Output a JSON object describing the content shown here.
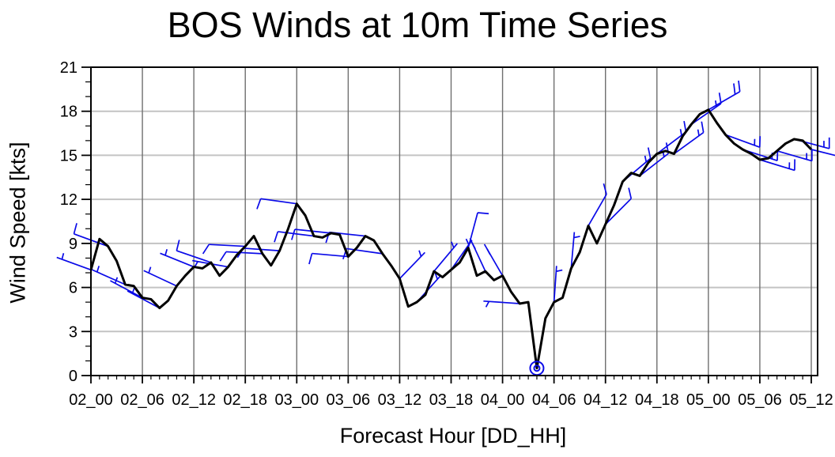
{
  "title": "BOS Winds at 10m Time Series",
  "axes": {
    "y": {
      "label": "Wind Speed [kts]",
      "tick_labels": [
        "0",
        "3",
        "6",
        "9",
        "12",
        "15",
        "18",
        "21"
      ],
      "range": [
        0,
        21
      ],
      "major_step": 3,
      "minor_step": 1
    },
    "x": {
      "label": "Forecast Hour [DD_HH]",
      "tick_labels": [
        "02_00",
        "02_06",
        "02_12",
        "02_18",
        "03_00",
        "03_06",
        "03_12",
        "03_18",
        "04_00",
        "04_06",
        "04_12",
        "04_18",
        "05_00",
        "05_06",
        "05_12"
      ],
      "range_hours": [
        0,
        84
      ],
      "major_step_hours": 6,
      "minor_step_hours": 1
    }
  },
  "colors": {
    "series_line": "#000000",
    "wind_barb": "#0a0ae8",
    "grid_vertical": "#6f6f6f",
    "grid_horizontal": "#c3c3c3",
    "frame": "#000000",
    "text": "#000000"
  },
  "chart_data": {
    "type": "line",
    "title": "BOS Winds at 10m Time Series",
    "xlabel": "Forecast Hour [DD_HH]",
    "ylabel": "Wind Speed [kts]",
    "x_start_label": "02_00",
    "x_end_label": "05_12",
    "x_step_hours": 1,
    "xlim_hours": [
      0,
      84
    ],
    "ylim": [
      0,
      21
    ],
    "grid": true,
    "series": [
      {
        "name": "wind_speed_kts",
        "values": [
          7.2,
          9.3,
          8.8,
          7.8,
          6.2,
          6.1,
          5.3,
          5.2,
          4.6,
          5.1,
          6.1,
          6.8,
          7.4,
          7.3,
          7.7,
          6.8,
          7.4,
          8.2,
          8.8,
          9.5,
          8.3,
          7.5,
          8.5,
          10.0,
          11.7,
          10.9,
          9.5,
          9.4,
          9.7,
          9.6,
          8.1,
          8.7,
          9.5,
          9.2,
          8.3,
          7.5,
          6.6,
          4.7,
          5.0,
          5.5,
          7.1,
          6.7,
          7.2,
          7.7,
          8.7,
          6.8,
          7.1,
          6.5,
          6.8,
          5.7,
          4.9,
          5.0,
          0.5,
          3.9,
          5.0,
          5.3,
          7.3,
          8.4,
          10.2,
          9.0,
          10.3,
          11.6,
          13.2,
          13.8,
          13.6,
          14.5,
          15.1,
          15.3,
          15.1,
          16.3,
          17.1,
          17.8,
          18.1,
          17.2,
          16.4,
          15.8,
          15.4,
          15.1,
          14.7,
          14.8,
          15.3,
          15.8,
          16.1,
          16.0,
          15.4
        ]
      }
    ],
    "wind_barbs": [
      {
        "t": 0,
        "dir": 160,
        "feather": 75
      },
      {
        "t": 2,
        "dir": 160,
        "feather": 75
      },
      {
        "t": 4,
        "dir": 156,
        "feather": 72
      },
      {
        "t": 6,
        "dir": 152,
        "feather": 70
      },
      {
        "t": 8,
        "dir": 152,
        "feather": 70
      },
      {
        "t": 10,
        "dir": 155,
        "feather": 72
      },
      {
        "t": 12,
        "dir": 158,
        "feather": 74
      },
      {
        "t": 14,
        "dir": 161,
        "feather": 76
      },
      {
        "t": 16,
        "dir": 170,
        "feather": 240
      },
      {
        "t": 18,
        "dir": 177,
        "feather": 237
      },
      {
        "t": 20,
        "dir": 177,
        "feather": 237
      },
      {
        "t": 22,
        "dir": 176,
        "feather": 238
      },
      {
        "t": 24,
        "dir": 172,
        "feather": 250
      },
      {
        "t": 26,
        "dir": 173,
        "feather": 252
      },
      {
        "t": 28,
        "dir": 174,
        "feather": 253
      },
      {
        "t": 30,
        "dir": 175,
        "feather": 255
      },
      {
        "t": 32,
        "dir": 174,
        "feather": 253
      },
      {
        "t": 34,
        "dir": 172,
        "feather": 252
      },
      {
        "t": 36,
        "dir": 46,
        "feather": 108
      },
      {
        "t": 38,
        "dir": 48,
        "feather": 110
      },
      {
        "t": 40,
        "dir": 50,
        "feather": 112
      },
      {
        "t": 42,
        "dir": 55,
        "feather": 115
      },
      {
        "t": 44,
        "dir": 75,
        "feather": -5
      },
      {
        "t": 46,
        "dir": 115,
        "feather": -62
      },
      {
        "t": 48,
        "dir": 120,
        "feather": -62
      },
      {
        "t": 50,
        "dir": 176,
        "feather": 242
      },
      {
        "t": 54,
        "dir": 86,
        "feather": 12
      },
      {
        "t": 56,
        "dir": 85,
        "feather": 12
      },
      {
        "t": 58,
        "dir": 60,
        "feather": 105
      },
      {
        "t": 60,
        "dir": 45,
        "feather": 103
      },
      {
        "t": 62,
        "dir": 40,
        "feather": 102
      },
      {
        "t": 64,
        "dir": 38,
        "feather": 101
      },
      {
        "t": 66,
        "dir": 37,
        "feather": 100
      },
      {
        "t": 68,
        "dir": 36,
        "feather": 100
      },
      {
        "t": 70,
        "dir": 35,
        "feather": 99
      },
      {
        "t": 72,
        "dir": 30,
        "feather": 97
      },
      {
        "t": 74,
        "dir": -20,
        "feather": 88
      },
      {
        "t": 76,
        "dir": -18,
        "feather": 88
      },
      {
        "t": 78,
        "dir": -17,
        "feather": 89
      },
      {
        "t": 80,
        "dir": -16,
        "feather": 90
      },
      {
        "t": 82,
        "dir": -15,
        "feather": 90
      },
      {
        "t": 84,
        "dir": -14,
        "feather": 91
      }
    ],
    "calm_marker": {
      "t": 52,
      "speed": 0.5,
      "symbol": "double-circle"
    }
  }
}
